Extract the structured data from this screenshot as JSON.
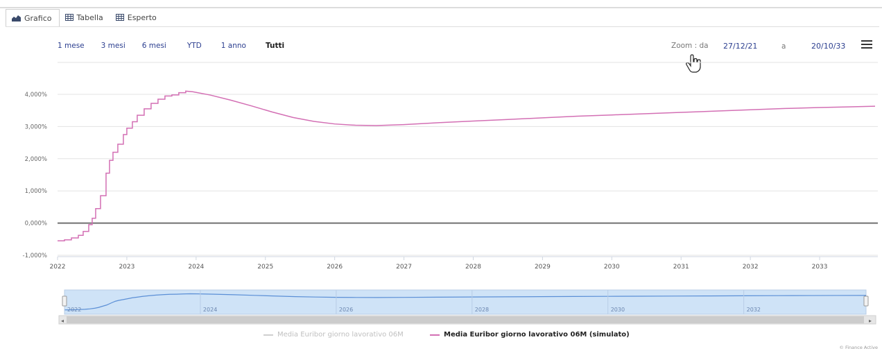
{
  "tabs": [
    {
      "label": "Grafico",
      "active": true,
      "icon": "area-chart-icon"
    },
    {
      "label": "Tabella",
      "active": false,
      "icon": "table-icon"
    },
    {
      "label": "Esperto",
      "active": false,
      "icon": "table-icon"
    }
  ],
  "range_buttons": [
    "1 mese",
    "3 mesi",
    "6 mesi",
    "YTD",
    "1 anno",
    "Tutti"
  ],
  "range_selected": "Tutti",
  "zoom": {
    "label": "Zoom : da",
    "from": "27/12/21",
    "to_label": "a",
    "to": "20/10/33"
  },
  "menu_icon": "hamburger-menu-icon",
  "cursor_icon": "hand-pointer-icon",
  "credits": "© Finance Active",
  "colors": {
    "series_line": "#d36fb4",
    "zero_line": "#707070",
    "navigator_fill": "#cfe3f7",
    "navigator_line": "#5b8fd6",
    "link": "#2b3e8f"
  },
  "chart_data": {
    "type": "line",
    "title": "",
    "xlabel": "",
    "ylabel": "",
    "x_range": [
      2022.0,
      2033.8
    ],
    "ylim": [
      -1.0,
      4.0
    ],
    "y_ticks": [
      "4,000%",
      "3,000%",
      "2,000%",
      "1,000%",
      "0,000%",
      "-1,000%"
    ],
    "x_ticks": [
      "2022",
      "2023",
      "2024",
      "2025",
      "2026",
      "2027",
      "2028",
      "2029",
      "2030",
      "2031",
      "2032",
      "2033"
    ],
    "navigator_ticks": [
      "2022",
      "2024",
      "2026",
      "2028",
      "2030",
      "2032"
    ],
    "grid": true,
    "legend": "bottom-center",
    "series": [
      {
        "name": "Media Euribor giorno lavorativo 06M",
        "visible": false,
        "color": "#c8c8c8",
        "x": [],
        "y": []
      },
      {
        "name": "Media Euribor giorno lavorativo 06M (simulato)",
        "visible": true,
        "color": "#d36fb4",
        "x": [
          2022.0,
          2022.1,
          2022.2,
          2022.3,
          2022.37,
          2022.45,
          2022.5,
          2022.55,
          2022.62,
          2022.7,
          2022.75,
          2022.8,
          2022.87,
          2022.95,
          2023.0,
          2023.08,
          2023.15,
          2023.25,
          2023.35,
          2023.45,
          2023.55,
          2023.65,
          2023.75,
          2023.85,
          2023.95,
          2024.2,
          2024.5,
          2024.8,
          2025.1,
          2025.4,
          2025.7,
          2026.0,
          2026.3,
          2026.6,
          2027.0,
          2027.5,
          2028.0,
          2028.5,
          2029.0,
          2029.5,
          2030.0,
          2030.5,
          2031.0,
          2031.5,
          2032.0,
          2032.5,
          2033.0,
          2033.4,
          2033.8
        ],
        "y": [
          -0.55,
          -0.52,
          -0.46,
          -0.38,
          -0.26,
          -0.05,
          0.15,
          0.45,
          0.85,
          1.55,
          1.95,
          2.2,
          2.45,
          2.75,
          2.95,
          3.15,
          3.35,
          3.55,
          3.72,
          3.85,
          3.95,
          3.98,
          4.05,
          4.1,
          4.08,
          3.98,
          3.82,
          3.64,
          3.45,
          3.28,
          3.16,
          3.08,
          3.04,
          3.03,
          3.06,
          3.12,
          3.17,
          3.22,
          3.27,
          3.32,
          3.36,
          3.4,
          3.44,
          3.48,
          3.52,
          3.56,
          3.59,
          3.61,
          3.63
        ]
      }
    ]
  }
}
